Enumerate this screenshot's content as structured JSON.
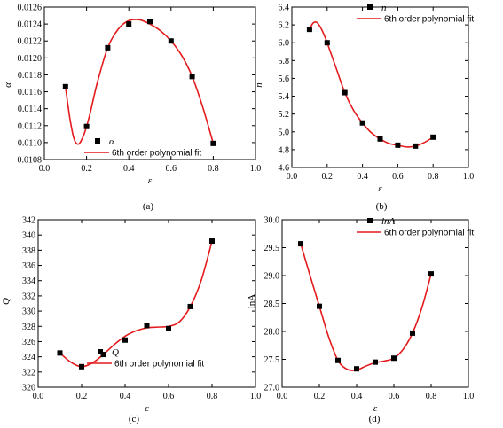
{
  "chart_data": [
    {
      "type": "scatter",
      "panel": "(a)",
      "xlabel": "ε",
      "ylabel": "α",
      "xlim": [
        0.0,
        1.0
      ],
      "ylim": [
        0.0108,
        0.0126
      ],
      "xticks": [
        "0.0",
        "0.2",
        "0.4",
        "0.6",
        "0.8",
        "1.0"
      ],
      "yticks": [
        "0.0108",
        "0.0110",
        "0.0112",
        "0.0114",
        "0.0116",
        "0.0118",
        "0.0120",
        "0.0122",
        "0.0124",
        "0.0126"
      ],
      "grid": false,
      "legend": {
        "position": "bottom-left",
        "entries": [
          "α",
          "6th order polynomial fit"
        ]
      },
      "series": [
        {
          "name": "α",
          "kind": "points",
          "x": [
            0.1,
            0.2,
            0.3,
            0.4,
            0.5,
            0.6,
            0.7,
            0.8
          ],
          "y": [
            0.01166,
            0.01119,
            0.01212,
            0.0124,
            0.01243,
            0.0122,
            0.01178,
            0.01099
          ]
        },
        {
          "name": "6th order polynomial fit",
          "kind": "line",
          "color": "#e41a1c",
          "x": [
            0.1,
            0.12,
            0.14,
            0.16,
            0.18,
            0.2,
            0.22,
            0.25,
            0.3,
            0.35,
            0.4,
            0.45,
            0.5,
            0.55,
            0.6,
            0.65,
            0.7,
            0.75,
            0.8
          ],
          "y": [
            0.01166,
            0.0113,
            0.01105,
            0.01098,
            0.01105,
            0.01119,
            0.01138,
            0.0117,
            0.01212,
            0.01234,
            0.01244,
            0.01245,
            0.0124,
            0.01232,
            0.0122,
            0.01203,
            0.01178,
            0.01142,
            0.01099
          ]
        }
      ]
    },
    {
      "type": "scatter",
      "panel": "(b)",
      "xlabel": "ε",
      "ylabel": "n",
      "xlim": [
        0.0,
        1.0
      ],
      "ylim": [
        4.6,
        6.4
      ],
      "xticks": [
        "0.0",
        "0.2",
        "0.4",
        "0.6",
        "0.8",
        "1.0"
      ],
      "yticks": [
        "4.6",
        "4.8",
        "5.0",
        "5.2",
        "5.4",
        "5.6",
        "5.8",
        "6.0",
        "6.2",
        "6.4"
      ],
      "grid": false,
      "legend": {
        "position": "top-right",
        "entries": [
          "n",
          "6th order polynomial fit"
        ]
      },
      "series": [
        {
          "name": "n",
          "kind": "points",
          "x": [
            0.1,
            0.2,
            0.3,
            0.4,
            0.5,
            0.6,
            0.7,
            0.8
          ],
          "y": [
            6.15,
            6.0,
            5.44,
            5.1,
            4.92,
            4.85,
            4.84,
            4.94
          ]
        },
        {
          "name": "6th order polynomial fit",
          "kind": "line",
          "color": "#e41a1c",
          "x": [
            0.1,
            0.12,
            0.14,
            0.16,
            0.18,
            0.2,
            0.25,
            0.3,
            0.35,
            0.4,
            0.45,
            0.5,
            0.55,
            0.6,
            0.65,
            0.7,
            0.75,
            0.8
          ],
          "y": [
            6.15,
            6.22,
            6.23,
            6.18,
            6.1,
            6.0,
            5.72,
            5.44,
            5.24,
            5.1,
            4.99,
            4.92,
            4.87,
            4.85,
            4.83,
            4.84,
            4.88,
            4.94
          ]
        }
      ]
    },
    {
      "type": "scatter",
      "panel": "(c)",
      "xlabel": "ε",
      "ylabel": "Q",
      "xlim": [
        0.0,
        1.0
      ],
      "ylim": [
        320,
        342
      ],
      "xticks": [
        "0.0",
        "0.2",
        "0.4",
        "0.6",
        "0.8",
        "1.0"
      ],
      "yticks": [
        "320",
        "322",
        "324",
        "326",
        "328",
        "330",
        "332",
        "334",
        "336",
        "338",
        "340",
        "342"
      ],
      "grid": false,
      "legend": {
        "position": "bottom-right",
        "entries": [
          "Q",
          "6th order polynomial fit"
        ]
      },
      "series": [
        {
          "name": "Q",
          "kind": "points",
          "x": [
            0.1,
            0.2,
            0.3,
            0.4,
            0.5,
            0.6,
            0.7,
            0.8
          ],
          "y": [
            324.5,
            322.7,
            324.3,
            326.2,
            328.1,
            327.7,
            330.6,
            339.2
          ]
        },
        {
          "name": "6th order polynomial fit",
          "kind": "line",
          "color": "#e41a1c",
          "x": [
            0.1,
            0.15,
            0.2,
            0.25,
            0.3,
            0.35,
            0.4,
            0.45,
            0.5,
            0.55,
            0.6,
            0.65,
            0.7,
            0.75,
            0.8
          ],
          "y": [
            324.5,
            323.3,
            322.7,
            323.2,
            324.3,
            325.6,
            326.7,
            327.4,
            327.8,
            327.9,
            328.0,
            328.6,
            330.6,
            334.0,
            339.2
          ]
        }
      ]
    },
    {
      "type": "scatter",
      "panel": "(d)",
      "xlabel": "ε",
      "ylabel": "lnA",
      "xlim": [
        0.0,
        1.0
      ],
      "ylim": [
        27.0,
        30.0
      ],
      "xticks": [
        "0.0",
        "0.2",
        "0.4",
        "0.6",
        "0.8",
        "1.0"
      ],
      "yticks": [
        "27.0",
        "27.5",
        "28.0",
        "28.5",
        "29.0",
        "29.5",
        "30.0"
      ],
      "grid": false,
      "legend": {
        "position": "top-right",
        "entries": [
          "lnA",
          "6th order polynomial fit"
        ]
      },
      "series": [
        {
          "name": "lnA",
          "kind": "points",
          "x": [
            0.1,
            0.2,
            0.3,
            0.4,
            0.5,
            0.6,
            0.7,
            0.8
          ],
          "y": [
            29.57,
            28.45,
            27.48,
            27.33,
            27.45,
            27.52,
            27.97,
            29.03
          ]
        },
        {
          "name": "6th order polynomial fit",
          "kind": "line",
          "color": "#e41a1c",
          "x": [
            0.1,
            0.15,
            0.2,
            0.25,
            0.3,
            0.35,
            0.4,
            0.45,
            0.5,
            0.55,
            0.6,
            0.65,
            0.7,
            0.75,
            0.8
          ],
          "y": [
            29.57,
            29.0,
            28.45,
            27.9,
            27.48,
            27.32,
            27.31,
            27.38,
            27.44,
            27.47,
            27.52,
            27.68,
            27.97,
            28.42,
            29.03
          ]
        }
      ]
    }
  ]
}
